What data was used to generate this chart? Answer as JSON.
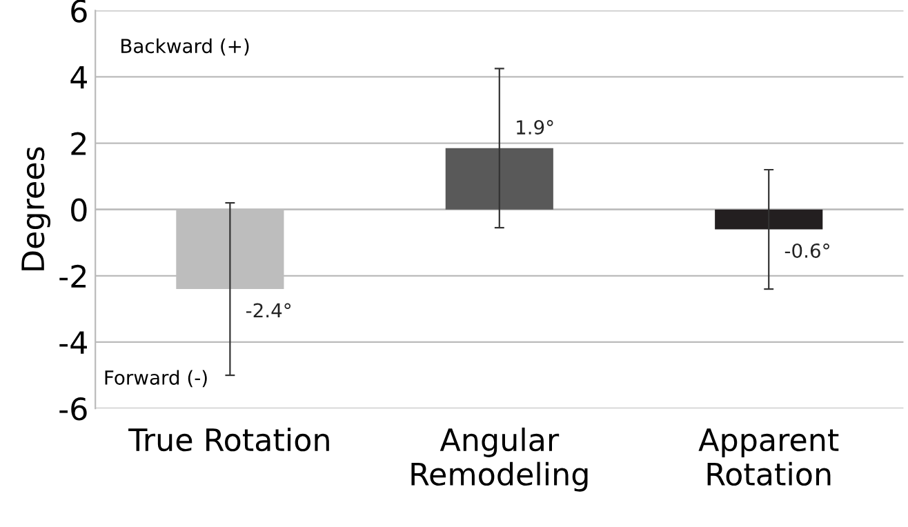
{
  "chart_data": {
    "type": "bar",
    "ylabel": "Degrees",
    "categories": [
      "True Rotation",
      "Angular Remodeling",
      "Apparent Rotation"
    ],
    "values": [
      -2.4,
      1.85,
      -0.6
    ],
    "colors": [
      "#bdbdbd",
      "#595959",
      "#231f20"
    ],
    "errors": [
      2.6,
      2.4,
      1.8
    ],
    "value_labels": [
      "-2.4°",
      "1.9°",
      "-0.6°"
    ],
    "annotations": [
      "Backward (+)",
      "Forward (-)"
    ],
    "ylim": [
      -6,
      6
    ],
    "yticks": [
      -6,
      -4,
      -2,
      0,
      2,
      4,
      6
    ],
    "grid": "y"
  }
}
